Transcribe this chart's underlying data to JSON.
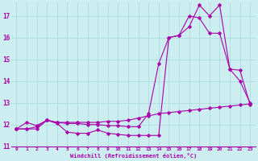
{
  "xlabel": "Windchill (Refroidissement éolien,°C)",
  "background_color": "#cceef0",
  "grid_color": "#aadddf",
  "line_color": "#aa00aa",
  "x_all": [
    0,
    1,
    2,
    3,
    4,
    5,
    6,
    7,
    8,
    9,
    10,
    11,
    12,
    13,
    14,
    15,
    16,
    17,
    18,
    19,
    20,
    21,
    22,
    23
  ],
  "series1": [
    11.8,
    12.1,
    11.95,
    12.2,
    12.05,
    11.65,
    11.6,
    11.6,
    11.75,
    11.6,
    11.55,
    11.5,
    11.5,
    11.5,
    11.5,
    16.0,
    16.1,
    17.0,
    16.9,
    16.2,
    16.2,
    14.55,
    14.0,
    13.0
  ],
  "series2": [
    11.8,
    11.8,
    11.8,
    12.2,
    12.1,
    12.05,
    12.05,
    12.0,
    12.0,
    11.95,
    11.95,
    11.9,
    11.9,
    12.5,
    14.8,
    16.0,
    16.1,
    16.5,
    17.5,
    17.0,
    17.5,
    14.55,
    14.5,
    12.9
  ],
  "series3": [
    11.8,
    11.8,
    11.9,
    12.2,
    12.1,
    12.1,
    12.1,
    12.1,
    12.1,
    12.15,
    12.15,
    12.2,
    12.3,
    12.4,
    12.5,
    12.55,
    12.6,
    12.65,
    12.7,
    12.75,
    12.8,
    12.85,
    12.9,
    12.95
  ],
  "ylim": [
    11.0,
    17.6
  ],
  "xlim": [
    -0.5,
    23.5
  ],
  "yticks": [
    11,
    12,
    13,
    14,
    15,
    16,
    17
  ],
  "xticks": [
    0,
    1,
    2,
    3,
    4,
    5,
    6,
    7,
    8,
    9,
    10,
    11,
    12,
    13,
    14,
    15,
    16,
    17,
    18,
    19,
    20,
    21,
    22,
    23
  ]
}
